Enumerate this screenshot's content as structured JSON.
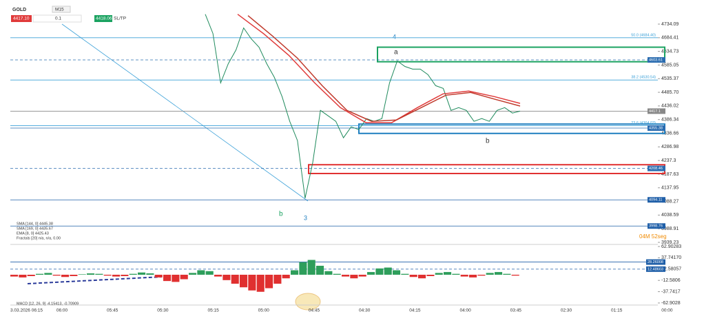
{
  "toolbar": {
    "symbol": "GOLD",
    "timeframe": "M15",
    "bid": "4417.10",
    "lot": "0.1",
    "ask": "4418.06",
    "sltp": "SL/TP"
  },
  "countdown": "04M 52seg",
  "annotations": {
    "a": "a",
    "b_right": "b",
    "wave4": "4",
    "b_left": "b",
    "wave3": "3"
  },
  "chart_data": [
    {
      "type": "line",
      "ylim": [
        3931.7,
        4771.7
      ],
      "yticks": [
        4734.09,
        4684.41,
        4634.73,
        4585.05,
        4535.37,
        {
          "value": 4485.7,
          "label": "4485.70"
        },
        4436.02,
        4386.34,
        4336.66,
        4286.98,
        4237.3,
        4187.63,
        4137.95,
        4088.27,
        4038.59,
        3988.91,
        3939.23
      ],
      "x_labels": [
        "3.03.2026 06:15",
        "06:00",
        "05:45",
        "05:30",
        "05:15",
        "05:00",
        "04:45",
        "04:30",
        "04:15",
        "04:00",
        "03:45",
        "02:30",
        "01:15",
        "00:00"
      ],
      "legend": [
        "SMA [144, 0] 4445.38",
        "SMA [169, 0] 4435.67",
        "EMA [8, 0] 4425.43",
        "Fractals [20] n/a, n/a, 0.00"
      ],
      "series": [
        {
          "name": "GOLD",
          "color": "#1e8a5c",
          "values": [
            4770,
            4700,
            4520,
            4590,
            4640,
            4720,
            4680,
            4650,
            4590,
            4540,
            4470,
            4380,
            4310,
            4100,
            4230,
            4420,
            4400,
            4380,
            4320,
            4360,
            4350,
            4390,
            4380,
            4390,
            4520,
            4600,
            4580,
            4570,
            4570,
            4550,
            4510,
            4500,
            4420,
            4430,
            4420,
            4380,
            4390,
            4380,
            4420,
            4430,
            4410,
            4417.1
          ]
        },
        {
          "name": "SMA [144, 0]",
          "color": "#e03a3a",
          "values": [
            4770,
            4700,
            4620,
            4520,
            4430,
            4375,
            4375,
            4430,
            4480,
            4490,
            4470,
            4445.38
          ]
        },
        {
          "name": "SMA [169, 0]",
          "color": "#c0392b",
          "values": [
            4765,
            4690,
            4610,
            4510,
            4420,
            4380,
            4385,
            4430,
            4475,
            4485,
            4460,
            4435.67
          ]
        }
      ],
      "levels": [
        {
          "value": 4684.4,
          "color": "#3aa0d8",
          "style": "solid",
          "text": "50.0 (4684.40)"
        },
        {
          "value": 4603.61,
          "color": "#2a6cb0",
          "style": "dashed",
          "boxed": true
        },
        {
          "value": 4530.54,
          "color": "#3aa0d8",
          "style": "solid",
          "text": "38.2 (4530.54)"
        },
        {
          "value": 4417.1,
          "color": "#888888",
          "style": "solid",
          "boxed": true
        },
        {
          "value": 4364.03,
          "color": "#3aa0d8",
          "style": "solid",
          "text": "23.6 (4364.03)"
        },
        {
          "value": 4355.38,
          "color": "#2a6cb0",
          "style": "solid",
          "boxed": true
        },
        {
          "value": 4208.46,
          "color": "#2a6cb0",
          "style": "dashed",
          "boxed": true
        },
        {
          "value": 4094.11,
          "color": "#1f5fa8",
          "style": "solid",
          "boxed": true
        },
        {
          "value": 3998.76,
          "color": "#1f5fa8",
          "style": "solid",
          "boxed": true
        }
      ],
      "zones": [
        {
          "from": 4597,
          "to": 4650,
          "color": "#1aa260"
        },
        {
          "from": 4336,
          "to": 4370,
          "color": "#1f7fc0"
        },
        {
          "from": 4190,
          "to": 4222,
          "color": "#e03030"
        }
      ]
    },
    {
      "type": "histogram",
      "legend": "MACD [12, 26, 9] -4.15413, -0.70909",
      "ylim": [
        -62.9028,
        62.90283
      ],
      "yticks": [
        62.90283,
        {
          "value": 37.7417,
          "label": "37.74170"
        },
        12.58057,
        -12.5806,
        -37.7417,
        -62.9028
      ],
      "up_color": "#2e9e5b",
      "down_color": "#e03030",
      "values": [
        -4,
        -6,
        -3,
        2,
        4,
        -2,
        -5,
        -3,
        1,
        3,
        2,
        -2,
        -4,
        -3,
        2,
        5,
        3,
        -6,
        -14,
        -16,
        -10,
        4,
        10,
        8,
        -4,
        -12,
        -20,
        -28,
        -35,
        -38,
        -30,
        -20,
        -8,
        10,
        28,
        33,
        20,
        8,
        2,
        -4,
        -8,
        -4,
        6,
        14,
        16,
        10,
        2,
        -5,
        -8,
        -3,
        4,
        6,
        2,
        -4,
        -6,
        -2,
        4,
        6,
        2,
        -2
      ],
      "levels": [
        {
          "value": 28.26008,
          "color": "#1f5fa8",
          "style": "solid"
        },
        {
          "value": 12.48603,
          "color": "#1f5fa8",
          "style": "dashed"
        }
      ]
    }
  ]
}
